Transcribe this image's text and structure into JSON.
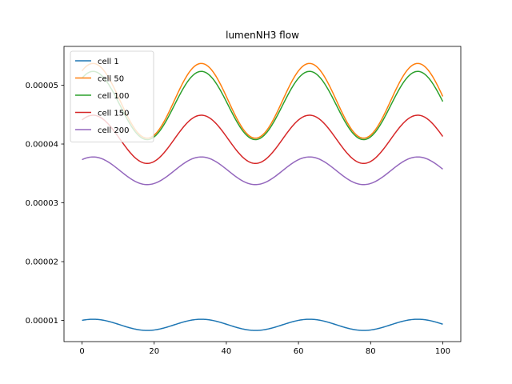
{
  "chart_data": {
    "type": "line",
    "title": "lumenNH3 flow",
    "xlabel": "",
    "ylabel": "",
    "xlim": [
      -5,
      105
    ],
    "ylim": [
      6.4e-06,
      5.66e-05
    ],
    "xticks": [
      0,
      20,
      40,
      60,
      80,
      100
    ],
    "xtick_labels": [
      "0",
      "20",
      "40",
      "60",
      "80",
      "100"
    ],
    "yticks": [
      1e-05,
      2e-05,
      3e-05,
      4e-05,
      5e-05
    ],
    "ytick_labels": [
      "0.00001",
      "0.00002",
      "0.00003",
      "0.00004",
      "0.00005"
    ],
    "grid": false,
    "legend": "top-left",
    "period": 30,
    "x_range": [
      0,
      100
    ],
    "series": [
      {
        "name": "cell 1",
        "color": "#1f77b4",
        "mean": 9.25e-06,
        "amplitude": 9.5e-07,
        "phase_start": 0.93
      },
      {
        "name": "cell 50",
        "color": "#ff7f0e",
        "mean": 4.735e-05,
        "amplitude": 6.35e-06,
        "phase_start": 0.93
      },
      {
        "name": "cell 100",
        "color": "#2ca02c",
        "mean": 4.655e-05,
        "amplitude": 5.8e-06,
        "phase_start": 0.93
      },
      {
        "name": "cell 150",
        "color": "#d62728",
        "mean": 4.08e-05,
        "amplitude": 4.1e-06,
        "phase_start": 0.93
      },
      {
        "name": "cell 200",
        "color": "#9467bd",
        "mean": 3.545e-05,
        "amplitude": 2.35e-06,
        "phase_start": 0.93
      }
    ]
  }
}
